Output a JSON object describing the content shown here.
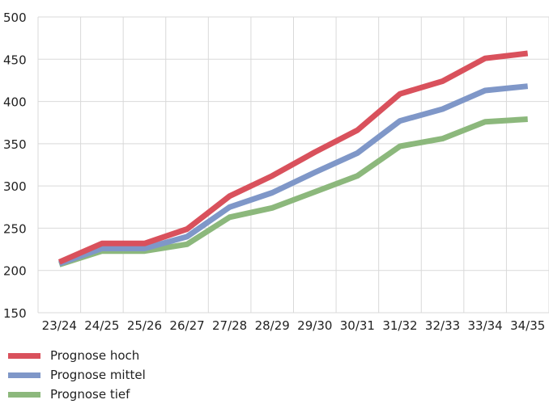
{
  "chart_data": {
    "type": "line",
    "categories": [
      "23/24",
      "24/25",
      "25/26",
      "26/27",
      "27/28",
      "28/29",
      "29/30",
      "30/31",
      "31/32",
      "32/33",
      "33/34",
      "34/35"
    ],
    "ylim": [
      150,
      500
    ],
    "yticks": [
      150,
      200,
      250,
      300,
      350,
      400,
      450,
      500
    ],
    "grid": true,
    "legend_position": "bottom-left",
    "series": [
      {
        "name": "Prognose hoch",
        "color": "#d9515c",
        "values": [
          210,
          232,
          232,
          249,
          288,
          312,
          340,
          366,
          409,
          424,
          451,
          457
        ]
      },
      {
        "name": "Prognose mittel",
        "color": "#7f97c8",
        "values": [
          208,
          226,
          226,
          240,
          275,
          292,
          316,
          339,
          377,
          391,
          413,
          418
        ]
      },
      {
        "name": "Prognose tief",
        "color": "#8cb87c",
        "values": [
          207,
          223,
          223,
          231,
          263,
          274,
          293,
          312,
          347,
          356,
          376,
          379
        ]
      }
    ]
  }
}
